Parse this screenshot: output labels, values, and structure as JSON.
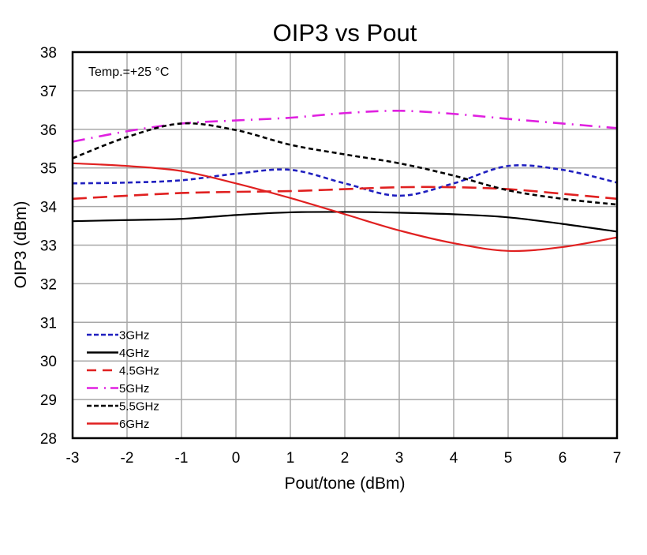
{
  "chart_data": {
    "type": "line",
    "title": "OIP3 vs Pout",
    "xlabel": "Pout/tone (dBm)",
    "ylabel": "OIP3 (dBm)",
    "xlim": [
      -3,
      7
    ],
    "ylim": [
      28,
      38
    ],
    "xticks": [
      -3,
      -2,
      -1,
      0,
      1,
      2,
      3,
      4,
      5,
      6,
      7
    ],
    "yticks": [
      28,
      29,
      30,
      31,
      32,
      33,
      34,
      35,
      36,
      37,
      38
    ],
    "grid": true,
    "legend_position": "bottom-left",
    "annotation": "Temp.=+25 °C",
    "x": [
      -3,
      -2,
      -1,
      0,
      1,
      2,
      3,
      4,
      5,
      6,
      7
    ],
    "series": [
      {
        "name": "3GHz",
        "color": "#1f1fbf",
        "dash": "dotted",
        "values": [
          34.6,
          34.62,
          34.68,
          34.85,
          34.95,
          34.6,
          34.28,
          34.6,
          35.05,
          34.95,
          34.62
        ]
      },
      {
        "name": "4GHz",
        "color": "#000000",
        "dash": "solid",
        "values": [
          33.62,
          33.65,
          33.68,
          33.78,
          33.85,
          33.86,
          33.84,
          33.8,
          33.72,
          33.55,
          33.35
        ]
      },
      {
        "name": "4.5GHz",
        "color": "#e02020",
        "dash": "dashed",
        "values": [
          34.2,
          34.28,
          34.35,
          34.38,
          34.4,
          34.45,
          34.5,
          34.5,
          34.45,
          34.33,
          34.2
        ]
      },
      {
        "name": "5GHz",
        "color": "#e020e0",
        "dash": "dashdot",
        "values": [
          35.68,
          35.95,
          36.15,
          36.23,
          36.3,
          36.42,
          36.48,
          36.4,
          36.27,
          36.15,
          36.03
        ]
      },
      {
        "name": "5.5GHz",
        "color": "#000000",
        "dash": "dotted",
        "values": [
          35.25,
          35.8,
          36.15,
          35.98,
          35.6,
          35.35,
          35.12,
          34.8,
          34.42,
          34.2,
          34.05
        ]
      },
      {
        "name": "6GHz",
        "color": "#e02020",
        "dash": "solid",
        "values": [
          35.12,
          35.05,
          34.92,
          34.6,
          34.22,
          33.8,
          33.38,
          33.05,
          32.85,
          32.95,
          33.2
        ]
      }
    ]
  }
}
